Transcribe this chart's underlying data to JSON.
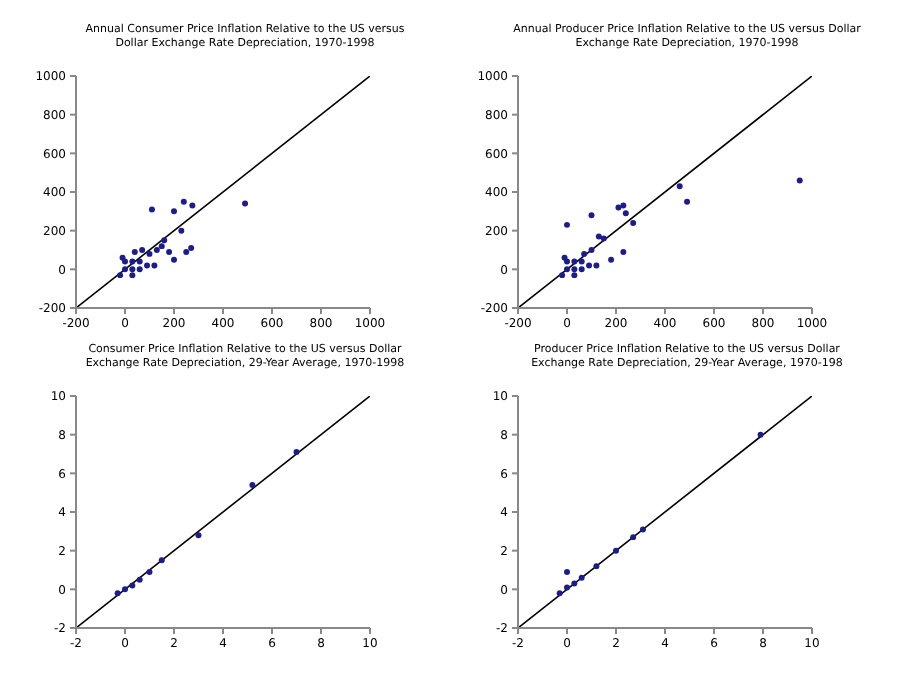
{
  "chart_data": [
    {
      "type": "scatter",
      "title": "Annual Consumer Price Inflation Relative to the US versus Dollar Exchange Rate Depreciation, 1970-1998",
      "xlim": [
        -200,
        1000
      ],
      "ylim": [
        -200,
        1000
      ],
      "xticks": [
        -200,
        0,
        200,
        400,
        600,
        800,
        1000
      ],
      "yticks": [
        -200,
        0,
        200,
        400,
        600,
        800,
        1000
      ],
      "series": [
        {
          "color": "#1c1c8c",
          "marker": "circle",
          "x": [
            -20,
            0,
            30,
            60,
            0,
            30,
            60,
            90,
            30,
            -10,
            120,
            70,
            100,
            130,
            150,
            160,
            180,
            200,
            230,
            250,
            270,
            110,
            200,
            240,
            275,
            490,
            40
          ],
          "values": [
            -30,
            0,
            0,
            0,
            40,
            40,
            40,
            20,
            -30,
            60,
            20,
            100,
            80,
            100,
            120,
            150,
            90,
            50,
            200,
            90,
            110,
            310,
            300,
            350,
            330,
            340,
            90
          ]
        },
        {
          "type": "line",
          "color": "#000000",
          "x": [
            -200,
            1000
          ],
          "values": [
            -200,
            1000
          ]
        }
      ]
    },
    {
      "type": "scatter",
      "title": "Annual Producer Price Inflation Relative to the US versus Dollar Exchange Rate Depreciation, 1970-1998",
      "xlim": [
        -200,
        1000
      ],
      "ylim": [
        -200,
        1000
      ],
      "xticks": [
        -200,
        0,
        200,
        400,
        600,
        800,
        1000
      ],
      "yticks": [
        -200,
        0,
        200,
        400,
        600,
        800,
        1000
      ],
      "series": [
        {
          "color": "#1c1c8c",
          "marker": "circle",
          "x": [
            -20,
            0,
            30,
            60,
            0,
            30,
            60,
            90,
            30,
            -10,
            120,
            70,
            100,
            130,
            150,
            180,
            230,
            270,
            0,
            100,
            210,
            230,
            240,
            460,
            490,
            950
          ],
          "values": [
            -30,
            0,
            0,
            0,
            40,
            40,
            40,
            20,
            -30,
            60,
            20,
            80,
            100,
            170,
            160,
            50,
            90,
            240,
            230,
            280,
            320,
            330,
            290,
            430,
            350,
            460
          ]
        },
        {
          "type": "line",
          "color": "#000000",
          "x": [
            -200,
            1000
          ],
          "values": [
            -200,
            1000
          ]
        }
      ]
    },
    {
      "type": "scatter",
      "title": "Consumer Price Inflation Relative to the US versus Dollar Exchange Rate Depreciation, 29-Year Average, 1970-1998",
      "xlim": [
        -2,
        10
      ],
      "ylim": [
        -2,
        10
      ],
      "xticks": [
        -2,
        0,
        2,
        4,
        6,
        8,
        10
      ],
      "yticks": [
        -2,
        0,
        2,
        4,
        6,
        8,
        10
      ],
      "series": [
        {
          "color": "#1c1c8c",
          "marker": "circle",
          "x": [
            -0.3,
            0,
            0.3,
            0.6,
            1,
            1.5,
            3,
            5.2,
            7
          ],
          "values": [
            -0.2,
            0,
            0.2,
            0.5,
            0.9,
            1.5,
            2.8,
            5.4,
            7.1
          ]
        },
        {
          "type": "line",
          "color": "#000000",
          "x": [
            -2,
            10
          ],
          "values": [
            -2,
            10
          ]
        }
      ]
    },
    {
      "type": "scatter",
      "title": "Producer Price Inflation Relative to the US versus Dollar Exchange Rate Depreciation, 29-Year Average, 1970-198",
      "xlim": [
        -2,
        10
      ],
      "ylim": [
        -2,
        10
      ],
      "xticks": [
        -2,
        0,
        2,
        4,
        6,
        8,
        10
      ],
      "yticks": [
        -2,
        0,
        2,
        4,
        6,
        8,
        10
      ],
      "series": [
        {
          "color": "#1c1c8c",
          "marker": "circle",
          "x": [
            -0.3,
            0,
            0,
            0.3,
            0.6,
            1.2,
            2,
            2.7,
            3.1,
            7.9
          ],
          "values": [
            -0.2,
            0.1,
            0.9,
            0.3,
            0.6,
            1.2,
            2,
            2.7,
            3.1,
            8
          ]
        },
        {
          "type": "line",
          "color": "#000000",
          "x": [
            -2,
            10
          ],
          "values": [
            -2,
            10
          ]
        }
      ]
    }
  ]
}
